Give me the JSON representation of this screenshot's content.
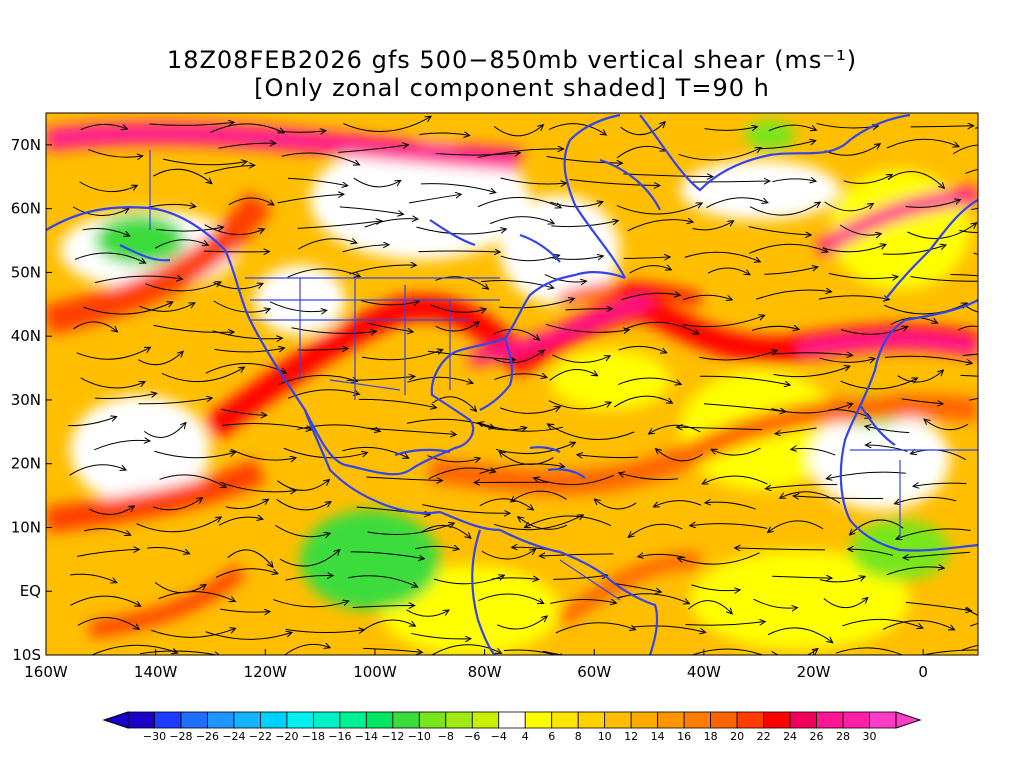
{
  "title": {
    "line1": "18Z08FEB2026 gfs 500−850mb vertical shear (ms⁻¹)",
    "line2": "[Only zonal component shaded] T=90 h"
  },
  "map": {
    "lon_range": [
      -160,
      10
    ],
    "lat_range": [
      -10,
      75
    ],
    "lon_ticks": [
      {
        "value": -160,
        "label": "160W"
      },
      {
        "value": -140,
        "label": "140W"
      },
      {
        "value": -120,
        "label": "120W"
      },
      {
        "value": -100,
        "label": "100W"
      },
      {
        "value": -80,
        "label": "80W"
      },
      {
        "value": -60,
        "label": "60W"
      },
      {
        "value": -40,
        "label": "40W"
      },
      {
        "value": -20,
        "label": "20W"
      },
      {
        "value": 0,
        "label": "0"
      }
    ],
    "lat_ticks": [
      {
        "value": -10,
        "label": "10S"
      },
      {
        "value": 0,
        "label": "EQ"
      },
      {
        "value": 10,
        "label": "10N"
      },
      {
        "value": 20,
        "label": "20N"
      },
      {
        "value": 30,
        "label": "30N"
      },
      {
        "value": 40,
        "label": "40N"
      },
      {
        "value": 50,
        "label": "50N"
      },
      {
        "value": 60,
        "label": "60N"
      },
      {
        "value": 70,
        "label": "70N"
      }
    ],
    "coastline_color": "#3344ee",
    "streamline_color": "#000000"
  },
  "colorbar": {
    "levels": [
      -30,
      -28,
      -26,
      -24,
      -22,
      -20,
      -18,
      -16,
      -14,
      -12,
      -10,
      -8,
      -6,
      -4,
      4,
      6,
      8,
      10,
      12,
      14,
      16,
      18,
      20,
      22,
      24,
      26,
      28,
      30
    ],
    "colors": [
      "#1a00c8",
      "#1e3cff",
      "#1e6eff",
      "#1e96ff",
      "#14b4ff",
      "#00d2ff",
      "#00f0f0",
      "#00f0c8",
      "#00f096",
      "#00e664",
      "#3cdc3c",
      "#78e61e",
      "#a0eb14",
      "#c8f000",
      "#ffffff",
      "#ffff00",
      "#ffe600",
      "#ffd200",
      "#ffbe00",
      "#ffaa00",
      "#ff9600",
      "#ff7d00",
      "#ff6400",
      "#ff3c00",
      "#ff0000",
      "#f0005a",
      "#ff1493",
      "#ff1eaa",
      "#ff3cc8"
    ]
  }
}
